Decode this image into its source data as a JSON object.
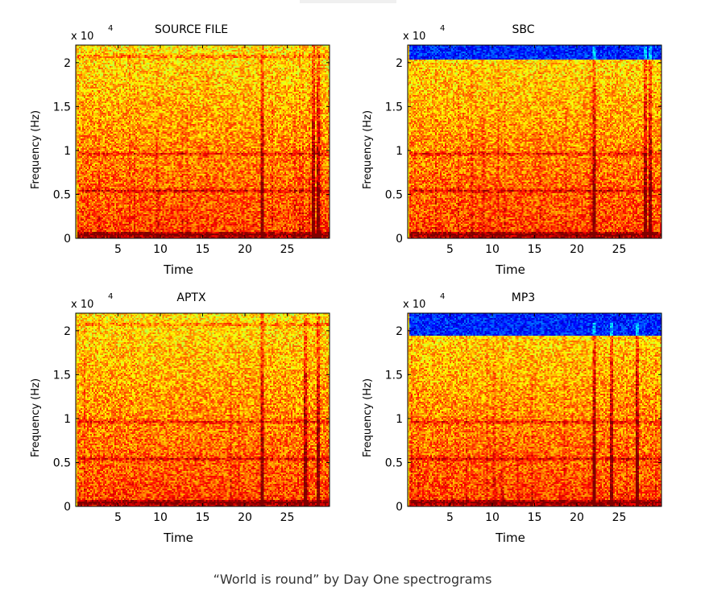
{
  "caption": "“World is round” by Day One spectrograms",
  "colors": {
    "jet_low": "#00008f",
    "jet_mid_low": "#00b4ff",
    "jet_mid": "#7fff7f",
    "jet_mid_high": "#ffdc00",
    "jet_high": "#e61e00",
    "noise_band": "#1e3ccd",
    "background": "#ffffff"
  },
  "chart_data": [
    {
      "type": "heatmap",
      "title": "SOURCE FILE",
      "xlabel": "Time",
      "ylabel": "Frequency (Hz)",
      "y_multiplier": "x 10",
      "y_multiplier_exponent": "4",
      "xticks": [
        "5",
        "10",
        "15",
        "20",
        "25"
      ],
      "xtick_values": [
        5,
        10,
        15,
        20,
        25
      ],
      "yticks": [
        "0",
        "0.5",
        "1",
        "1.5",
        "2"
      ],
      "ytick_values": [
        0,
        0.5,
        1,
        1.5,
        2
      ],
      "xlim": [
        0,
        30
      ],
      "ylim": [
        0,
        2.2
      ],
      "colormap": "jet",
      "lowpass_cutoff": null,
      "harmonic_bands": [
        0.05,
        0.55,
        0.97,
        2.08
      ],
      "transients": [
        22,
        28,
        28.5
      ]
    },
    {
      "type": "heatmap",
      "title": "SBC",
      "xlabel": "Time",
      "ylabel": "Frequency (Hz)",
      "y_multiplier": "x 10",
      "y_multiplier_exponent": "4",
      "xticks": [
        "5",
        "10",
        "15",
        "20",
        "25"
      ],
      "xtick_values": [
        5,
        10,
        15,
        20,
        25
      ],
      "yticks": [
        "0",
        "0.5",
        "1",
        "1.5",
        "2"
      ],
      "ytick_values": [
        0,
        0.5,
        1,
        1.5,
        2
      ],
      "xlim": [
        0,
        30
      ],
      "ylim": [
        0,
        2.2
      ],
      "colormap": "jet",
      "lowpass_cutoff": 2.05,
      "harmonic_bands": [
        0.05,
        0.55,
        0.97
      ],
      "transients": [
        22,
        28,
        28.5
      ]
    },
    {
      "type": "heatmap",
      "title": "APTX",
      "xlabel": "Time",
      "ylabel": "Frequency (Hz)",
      "y_multiplier": "x 10",
      "y_multiplier_exponent": "4",
      "xticks": [
        "5",
        "10",
        "15",
        "20",
        "25"
      ],
      "xtick_values": [
        5,
        10,
        15,
        20,
        25
      ],
      "yticks": [
        "0",
        "0.5",
        "1",
        "1.5",
        "2"
      ],
      "ytick_values": [
        0,
        0.5,
        1,
        1.5,
        2
      ],
      "xlim": [
        0,
        30
      ],
      "ylim": [
        0,
        2.2
      ],
      "colormap": "jet",
      "lowpass_cutoff": null,
      "harmonic_bands": [
        0.05,
        0.55,
        0.97,
        2.08
      ],
      "transients": [
        22,
        27,
        28.5
      ]
    },
    {
      "type": "heatmap",
      "title": "MP3",
      "xlabel": "Time",
      "ylabel": "Frequency (Hz)",
      "y_multiplier": "x 10",
      "y_multiplier_exponent": "4",
      "xticks": [
        "5",
        "10",
        "15",
        "20",
        "25"
      ],
      "xtick_values": [
        5,
        10,
        15,
        20,
        25
      ],
      "yticks": [
        "0",
        "0.5",
        "1",
        "1.5",
        "2"
      ],
      "ytick_values": [
        0,
        0.5,
        1,
        1.5,
        2
      ],
      "xlim": [
        0,
        30
      ],
      "ylim": [
        0,
        2.2
      ],
      "colormap": "jet",
      "lowpass_cutoff": 1.95,
      "harmonic_bands": [
        0.05,
        0.55,
        0.97
      ],
      "transients": [
        22,
        24,
        27
      ]
    }
  ]
}
